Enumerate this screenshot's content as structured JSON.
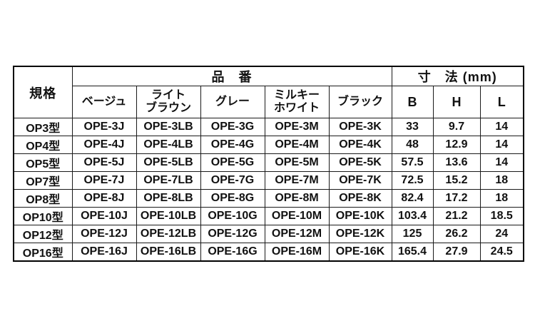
{
  "table": {
    "header": {
      "spec": "規格",
      "part_number_group": "品　番",
      "dimensions_group": "寸　法 (mm)",
      "columns": [
        "ベージュ",
        "ライト\nブラウン",
        "グレー",
        "ミルキー\nホワイト",
        "ブラック",
        "B",
        "H",
        "L"
      ]
    },
    "rows": [
      {
        "spec": "OP3型",
        "cells": [
          "OPE-3J",
          "OPE-3LB",
          "OPE-3G",
          "OPE-3M",
          "OPE-3K",
          "33",
          "9.7",
          "14"
        ]
      },
      {
        "spec": "OP4型",
        "cells": [
          "OPE-4J",
          "OPE-4LB",
          "OPE-4G",
          "OPE-4M",
          "OPE-4K",
          "48",
          "12.9",
          "14"
        ]
      },
      {
        "spec": "OP5型",
        "cells": [
          "OPE-5J",
          "OPE-5LB",
          "OPE-5G",
          "OPE-5M",
          "OPE-5K",
          "57.5",
          "13.6",
          "14"
        ]
      },
      {
        "spec": "OP7型",
        "cells": [
          "OPE-7J",
          "OPE-7LB",
          "OPE-7G",
          "OPE-7M",
          "OPE-7K",
          "72.5",
          "15.2",
          "18"
        ]
      },
      {
        "spec": "OP8型",
        "cells": [
          "OPE-8J",
          "OPE-8LB",
          "OPE-8G",
          "OPE-8M",
          "OPE-8K",
          "82.4",
          "17.2",
          "18"
        ]
      },
      {
        "spec": "OP10型",
        "cells": [
          "OPE-10J",
          "OPE-10LB",
          "OPE-10G",
          "OPE-10M",
          "OPE-10K",
          "103.4",
          "21.2",
          "18.5"
        ]
      },
      {
        "spec": "OP12型",
        "cells": [
          "OPE-12J",
          "OPE-12LB",
          "OPE-12G",
          "OPE-12M",
          "OPE-12K",
          "125",
          "26.2",
          "24"
        ]
      },
      {
        "spec": "OP16型",
        "cells": [
          "OPE-16J",
          "OPE-16LB",
          "OPE-16G",
          "OPE-16M",
          "OPE-16K",
          "165.4",
          "27.9",
          "24.5"
        ]
      }
    ],
    "colors": {
      "background": "#ffffff",
      "text": "#111111",
      "border": "#000000"
    }
  }
}
